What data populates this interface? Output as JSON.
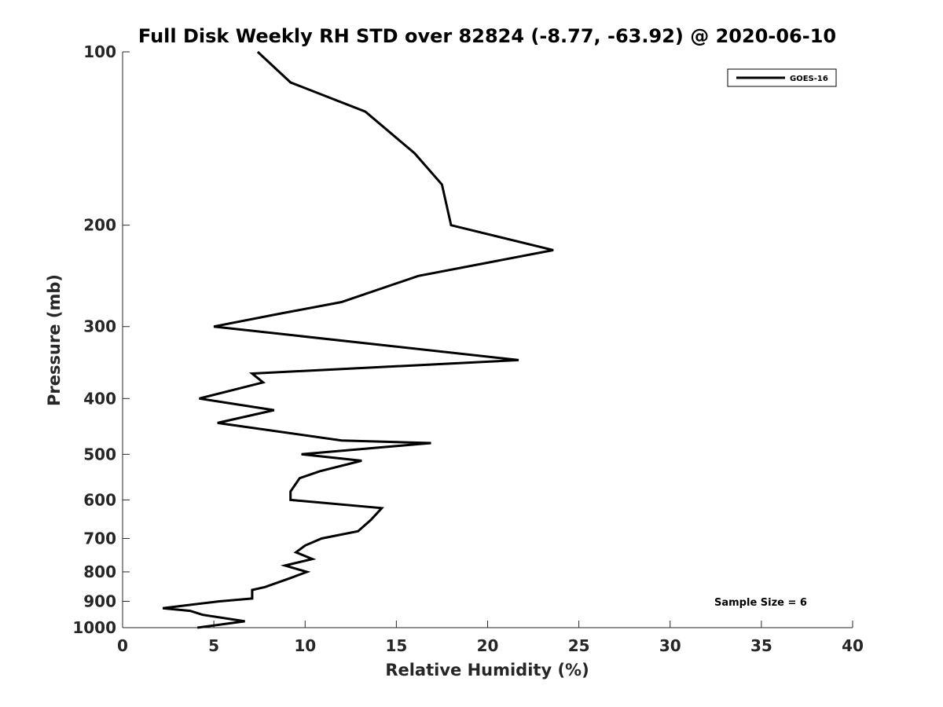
{
  "chart_data": {
    "type": "line",
    "title": "Full Disk Weekly RH STD over 82824 (-8.77, -63.92) @ 2020-06-10",
    "xlabel": "Relative Humidity (%)",
    "ylabel": "Pressure (mb)",
    "xlim": [
      0,
      40
    ],
    "ylim": [
      100,
      1000
    ],
    "yscale": "log",
    "y_inverted": true,
    "x_ticks": [
      0,
      5,
      10,
      15,
      20,
      25,
      30,
      35,
      40
    ],
    "y_ticks": [
      100,
      200,
      300,
      400,
      500,
      600,
      700,
      800,
      900,
      1000
    ],
    "grid": false,
    "legend_position": "top-right",
    "annotation": "Sample Size = 6",
    "series": [
      {
        "name": "GOES-16",
        "color": "#000000",
        "x": [
          7.4,
          9.2,
          13.3,
          16.0,
          17.5,
          18.0,
          23.6,
          16.2,
          12.0,
          8.6,
          5.0,
          21.7,
          7.1,
          7.7,
          4.2,
          8.3,
          5.2,
          12.0,
          16.9,
          9.8,
          13.1,
          10.8,
          9.7,
          9.2,
          9.2,
          14.2,
          13.6,
          12.9,
          10.9,
          10.0,
          9.5,
          10.4,
          8.9,
          10.1,
          9.2,
          7.8,
          7.1,
          7.1,
          5.3,
          2.2,
          3.7,
          4.4,
          6.7,
          4.1
        ],
        "y": [
          100,
          113,
          127,
          150,
          170,
          200,
          221,
          245,
          272,
          285,
          300,
          343,
          362,
          375,
          400,
          419,
          441,
          473,
          478,
          500,
          513,
          535,
          550,
          580,
          600,
          620,
          650,
          680,
          700,
          720,
          740,
          760,
          780,
          800,
          820,
          850,
          860,
          890,
          900,
          925,
          935,
          950,
          975,
          1000
        ]
      }
    ]
  }
}
